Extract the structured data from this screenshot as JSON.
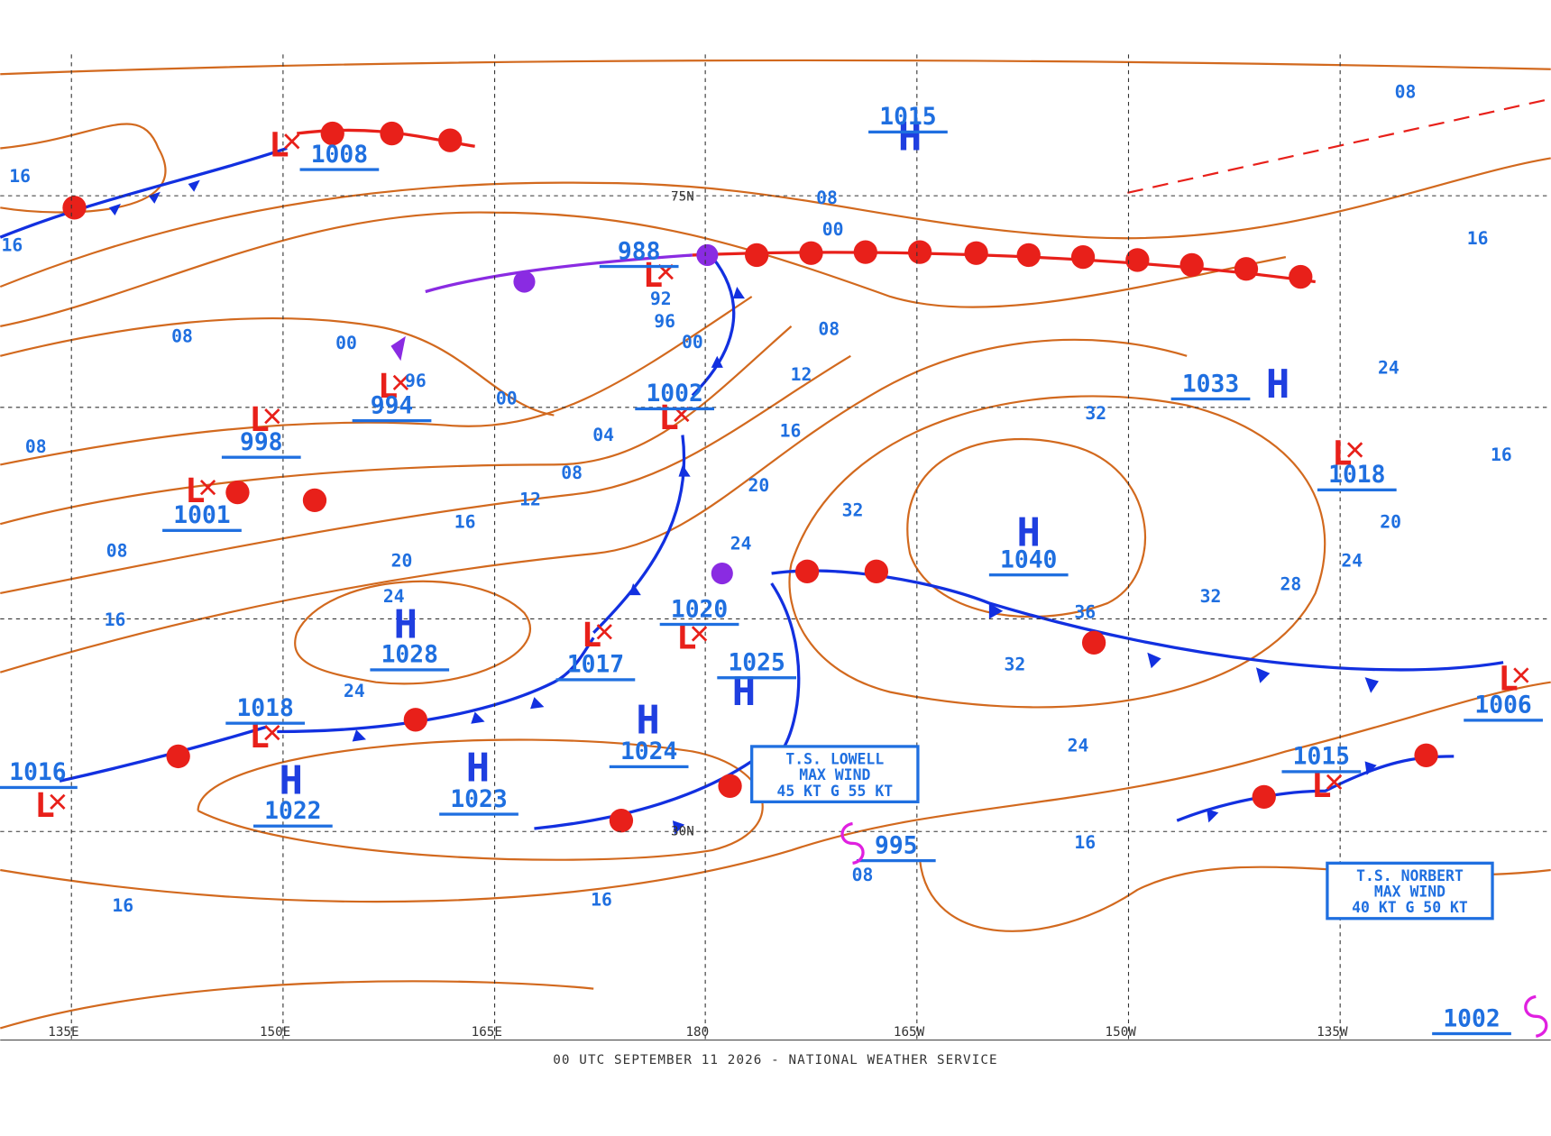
{
  "title": "00 UTC SEPTEMBER 11 2026 - NATIONAL WEATHER SERVICE",
  "longitude_labels": [
    "135E",
    "150E",
    "165E",
    "180",
    "165W",
    "150W",
    "135W"
  ],
  "latitude_labels": [
    "75N",
    "30N"
  ],
  "highs": [
    {
      "symbol": "H",
      "pressure": "1015"
    },
    {
      "symbol": "H",
      "pressure": "1028"
    },
    {
      "symbol": "H",
      "pressure": "1024"
    },
    {
      "symbol": "H",
      "pressure": "1023"
    },
    {
      "symbol": "H",
      "pressure": "1022"
    },
    {
      "symbol": "H",
      "pressure": "1025"
    },
    {
      "symbol": "H",
      "pressure": "1033"
    },
    {
      "symbol": "H",
      "pressure": "1040"
    }
  ],
  "lows": [
    {
      "symbol": "L",
      "pressure": "1008"
    },
    {
      "symbol": "L",
      "pressure": "988"
    },
    {
      "symbol": "L",
      "pressure": "994"
    },
    {
      "symbol": "L",
      "pressure": "998"
    },
    {
      "symbol": "L",
      "pressure": "1001"
    },
    {
      "symbol": "L",
      "pressure": "1002"
    },
    {
      "symbol": "L",
      "pressure": "1017"
    },
    {
      "symbol": "L",
      "pressure": "1020"
    },
    {
      "symbol": "L",
      "pressure": "1018"
    },
    {
      "symbol": "L",
      "pressure": "1016"
    },
    {
      "symbol": "L",
      "pressure": "1018"
    },
    {
      "symbol": "L",
      "pressure": "1015"
    },
    {
      "symbol": "L",
      "pressure": "1006"
    }
  ],
  "tropical_lows": [
    {
      "pressure": "995"
    },
    {
      "pressure": "1002"
    }
  ],
  "isobar_labels": [
    "16",
    "16",
    "08",
    "00",
    "96",
    "08",
    "08",
    "16",
    "20",
    "24",
    "24",
    "16",
    "12",
    "08",
    "04",
    "00",
    "92",
    "96",
    "00",
    "08",
    "00",
    "08",
    "12",
    "16",
    "20",
    "24",
    "32",
    "32",
    "36",
    "32",
    "32",
    "28",
    "24",
    "20",
    "24",
    "16",
    "16",
    "08",
    "24",
    "16",
    "16",
    "16",
    "08"
  ],
  "storms": [
    {
      "lines": [
        "T.S. LOWELL",
        "MAX WIND",
        "45 KT G 55 KT"
      ]
    },
    {
      "lines": [
        "T.S. NORBERT",
        "MAX WIND",
        "40 KT G 50 KT"
      ]
    }
  ]
}
